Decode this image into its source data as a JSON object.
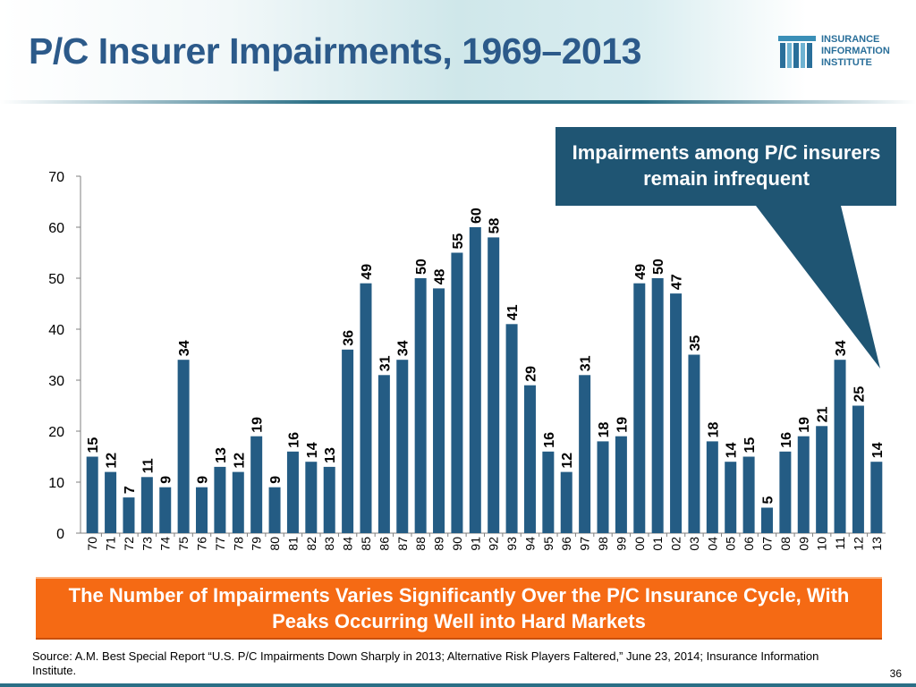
{
  "slide": {
    "title": "P/C Insurer Impairments, 1969–2013",
    "callout": "Impairments among P/C insurers remain infrequent",
    "banner": "The Number of Impairments Varies Significantly Over the P/C Insurance Cycle, With Peaks Occurring Well into Hard Markets",
    "source": "Source: A.M. Best Special Report “U.S. P/C Impairments Down Sharply in 2013; Alternative Risk Players Faltered,” June 23, 2014; Insurance Information Institute.",
    "page_number": "36"
  },
  "logo": {
    "line1": "INSURANCE",
    "line2": "INFORMATION",
    "line3": "INSTITUTE"
  },
  "colors": {
    "bar": "#245c84",
    "title": "#2c5a8a",
    "callout_bg": "#1f5573",
    "banner_bg": "#f56a14"
  },
  "chart_data": {
    "type": "bar",
    "categories": [
      "70",
      "71",
      "72",
      "73",
      "74",
      "75",
      "76",
      "77",
      "78",
      "79",
      "80",
      "81",
      "82",
      "83",
      "84",
      "85",
      "86",
      "87",
      "88",
      "89",
      "90",
      "91",
      "92",
      "93",
      "94",
      "95",
      "96",
      "97",
      "98",
      "99",
      "00",
      "01",
      "02",
      "03",
      "04",
      "05",
      "06",
      "07",
      "08",
      "09",
      "10",
      "11",
      "12",
      "13"
    ],
    "values": [
      15,
      12,
      7,
      11,
      9,
      34,
      9,
      13,
      12,
      19,
      9,
      16,
      14,
      13,
      36,
      49,
      31,
      34,
      50,
      48,
      55,
      60,
      58,
      41,
      29,
      16,
      12,
      31,
      18,
      19,
      49,
      50,
      47,
      35,
      18,
      14,
      15,
      5,
      16,
      19,
      21,
      34,
      25,
      14
    ],
    "yticks": [
      0,
      10,
      20,
      30,
      40,
      50,
      60,
      70
    ],
    "ylim": [
      0,
      70
    ],
    "data_labels": true,
    "grid": false,
    "legend": "none"
  }
}
